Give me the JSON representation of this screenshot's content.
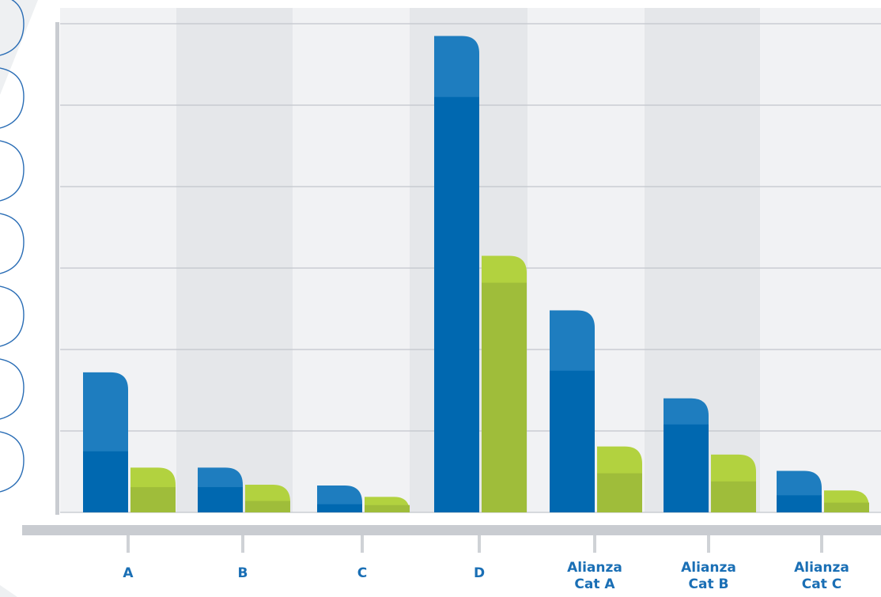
{
  "chart_data": {
    "type": "bar",
    "title": "",
    "xlabel": "",
    "ylabel": "",
    "ylim": [
      0,
      6
    ],
    "grid": true,
    "legend": "none",
    "categories": [
      "A",
      "B",
      "C",
      "D",
      "Alianza Cat A",
      "Alianza Cat B",
      "Alianza Cat C"
    ],
    "category_labels": [
      [
        "A"
      ],
      [
        "B"
      ],
      [
        "C"
      ],
      [
        "D"
      ],
      [
        "Alianza",
        "Cat A"
      ],
      [
        "Alianza",
        "Cat B"
      ],
      [
        "Alianza",
        "Cat C"
      ]
    ],
    "series": [
      {
        "color": "#0068b0",
        "top_color": "#1e7dbf",
        "totals": [
          1.72,
          0.55,
          0.33,
          5.85,
          2.48,
          1.4,
          0.51
        ],
        "bases": [
          0.75,
          0.31,
          0.1,
          5.1,
          1.74,
          1.08,
          0.21
        ]
      },
      {
        "color": "#9fbd3a",
        "top_color": "#b2d23f",
        "totals": [
          0.55,
          0.34,
          0.19,
          3.15,
          0.81,
          0.71,
          0.27
        ],
        "bases": [
          0.31,
          0.14,
          0.09,
          2.82,
          0.48,
          0.38,
          0.12
        ]
      }
    ],
    "colors": {
      "band_light": "#f1f2f4",
      "band_dark": "#e5e7ea",
      "grid": "#c2c6cc",
      "axis": "#c9ccd1",
      "tick": "#cfd2d6",
      "label": "#1a6fb5",
      "decor_outline": "#2a6db5"
    }
  }
}
